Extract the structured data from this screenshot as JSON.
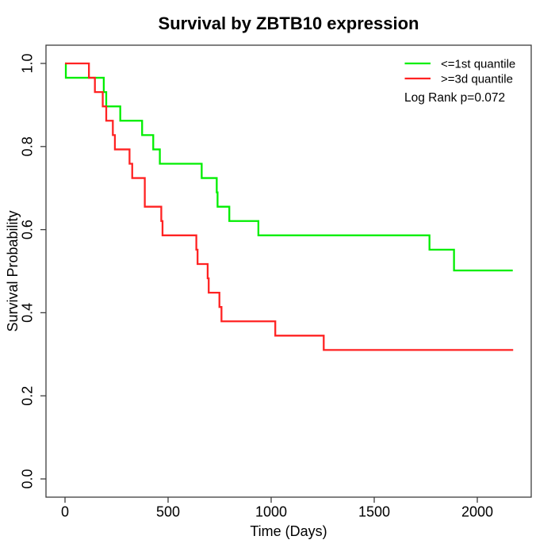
{
  "window": {
    "title": "Survival by ZBTB10 expression"
  },
  "chart_data": {
    "type": "line",
    "subtype": "kaplan-meier-step",
    "title": "Survival by ZBTB10 expression",
    "xlabel": "Time (Days)",
    "ylabel": "Survival Probability",
    "xlim": [
      0,
      2260
    ],
    "ylim": [
      0.0,
      1.04
    ],
    "x_ticks": [
      "0",
      "500",
      "1000",
      "1500",
      "2000"
    ],
    "y_ticks": [
      "0.0",
      "0.2",
      "0.4",
      "0.6",
      "0.8",
      "1.0"
    ],
    "grid": false,
    "legend_position": "top-right",
    "annotation": "Log Rank p=0.072",
    "series": [
      {
        "name": "<=1st quantile",
        "color": "#00ee00",
        "end_time": 2172,
        "steps": [
          [
            0,
            1.0
          ],
          [
            4,
            0.9655
          ],
          [
            188,
            0.931
          ],
          [
            200,
            0.8966
          ],
          [
            268,
            0.8621
          ],
          [
            374,
            0.8276
          ],
          [
            428,
            0.7931
          ],
          [
            460,
            0.7586
          ],
          [
            663,
            0.7241
          ],
          [
            736,
            0.6897
          ],
          [
            740,
            0.6552
          ],
          [
            797,
            0.6207
          ],
          [
            938,
            0.5862
          ],
          [
            1768,
            0.5517
          ],
          [
            1887,
            0.5017
          ]
        ]
      },
      {
        "name": ">=3d quantile",
        "color": "#ff2222",
        "end_time": 2174,
        "steps": [
          [
            0,
            1.0
          ],
          [
            116,
            0.9655
          ],
          [
            145,
            0.931
          ],
          [
            183,
            0.8966
          ],
          [
            200,
            0.8621
          ],
          [
            232,
            0.8276
          ],
          [
            242,
            0.7931
          ],
          [
            313,
            0.7586
          ],
          [
            326,
            0.7241
          ],
          [
            387,
            0.6552
          ],
          [
            467,
            0.6207
          ],
          [
            473,
            0.5862
          ],
          [
            637,
            0.5517
          ],
          [
            643,
            0.5172
          ],
          [
            692,
            0.4828
          ],
          [
            697,
            0.4483
          ],
          [
            749,
            0.4138
          ],
          [
            759,
            0.3793
          ],
          [
            1020,
            0.3448
          ],
          [
            1255,
            0.3103
          ]
        ]
      }
    ]
  }
}
